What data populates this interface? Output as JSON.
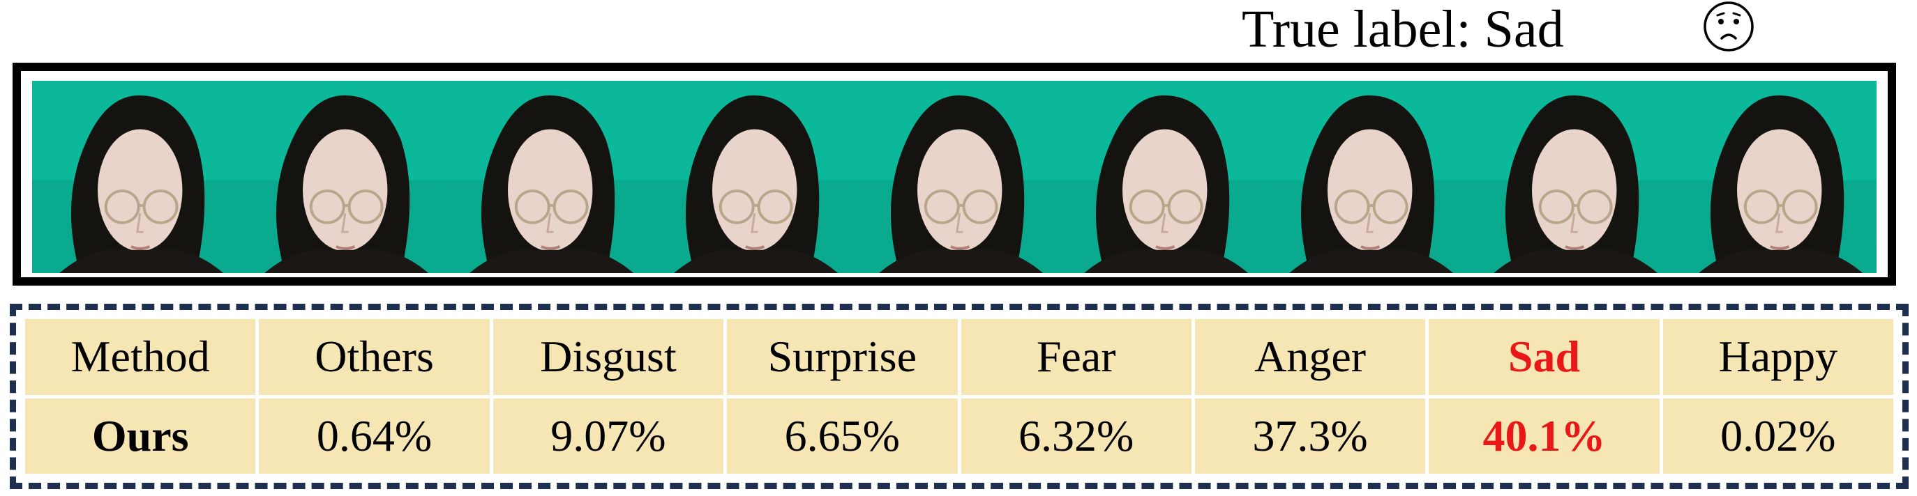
{
  "header": {
    "true_label_text": "True label: Sad",
    "emotion_icon": "sad-face-icon"
  },
  "frames": {
    "count": 9,
    "background_color": "#0bb89a"
  },
  "table": {
    "header_row": [
      "Method",
      "Others",
      "Disgust",
      "Surprise",
      "Fear",
      "Anger",
      "Sad",
      "Happy"
    ],
    "data_row": {
      "method": "Ours",
      "values": [
        "0.64%",
        "9.07%",
        "6.65%",
        "6.32%",
        "37.3%",
        "40.1%",
        "0.02%"
      ]
    },
    "highlight_column": "Sad",
    "highlight_color": "#e81818",
    "cell_background": "#f6e6b4",
    "border_color": "#1f2f4f"
  }
}
